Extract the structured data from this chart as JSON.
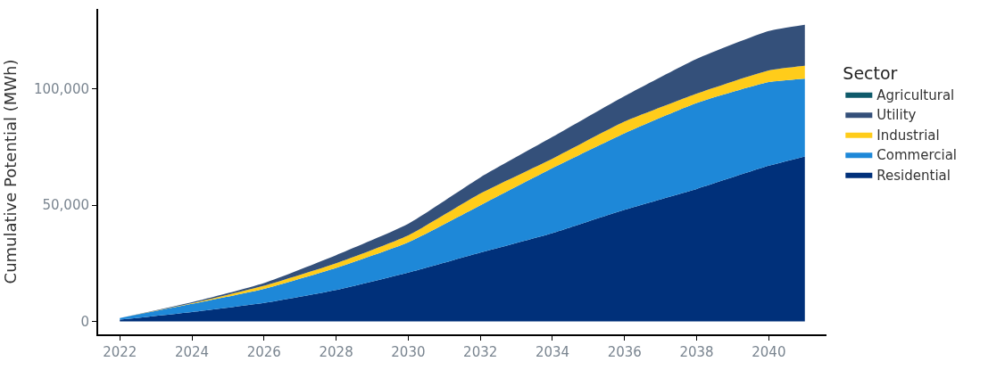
{
  "chart_data": {
    "type": "area",
    "stacked": true,
    "ylabel": "Cumulative Potential (MWh)",
    "legend_title": "Sector",
    "legend": "right",
    "x": [
      2022,
      2024,
      2026,
      2028,
      2030,
      2032,
      2034,
      2036,
      2038,
      2040,
      2041
    ],
    "xlim": [
      2021.4,
      2041.6
    ],
    "xticks": [
      2022,
      2024,
      2026,
      2028,
      2030,
      2032,
      2034,
      2036,
      2038,
      2040
    ],
    "ylim": [
      -5600,
      134500
    ],
    "yticks": [
      {
        "value": 0,
        "label": "0"
      },
      {
        "value": 50000,
        "label": "50,000"
      },
      {
        "value": 100000,
        "label": "100,000"
      }
    ],
    "series": [
      {
        "name": "Residential",
        "color": "#00307a",
        "values": [
          700,
          4000,
          7900,
          13500,
          21000,
          29600,
          38000,
          48000,
          57000,
          67000,
          71000
        ]
      },
      {
        "name": "Commercial",
        "color": "#1e88d8",
        "values": [
          700,
          3500,
          6100,
          9500,
          13000,
          20400,
          28000,
          33000,
          37000,
          36000,
          33500
        ]
      },
      {
        "name": "Industrial",
        "color": "#ffcc1a",
        "values": [
          0,
          300,
          1300,
          2000,
          3000,
          5000,
          4000,
          5000,
          4000,
          5000,
          5500
        ]
      },
      {
        "name": "Utility",
        "color": "#34507a",
        "values": [
          0,
          400,
          1200,
          3500,
          5000,
          7000,
          9400,
          11000,
          15000,
          17000,
          17700
        ]
      },
      {
        "name": "Agricultural",
        "color": "#0e5a6a",
        "values": [
          null,
          null,
          null,
          null,
          null,
          null,
          null,
          null,
          null,
          null,
          null
        ]
      }
    ]
  }
}
